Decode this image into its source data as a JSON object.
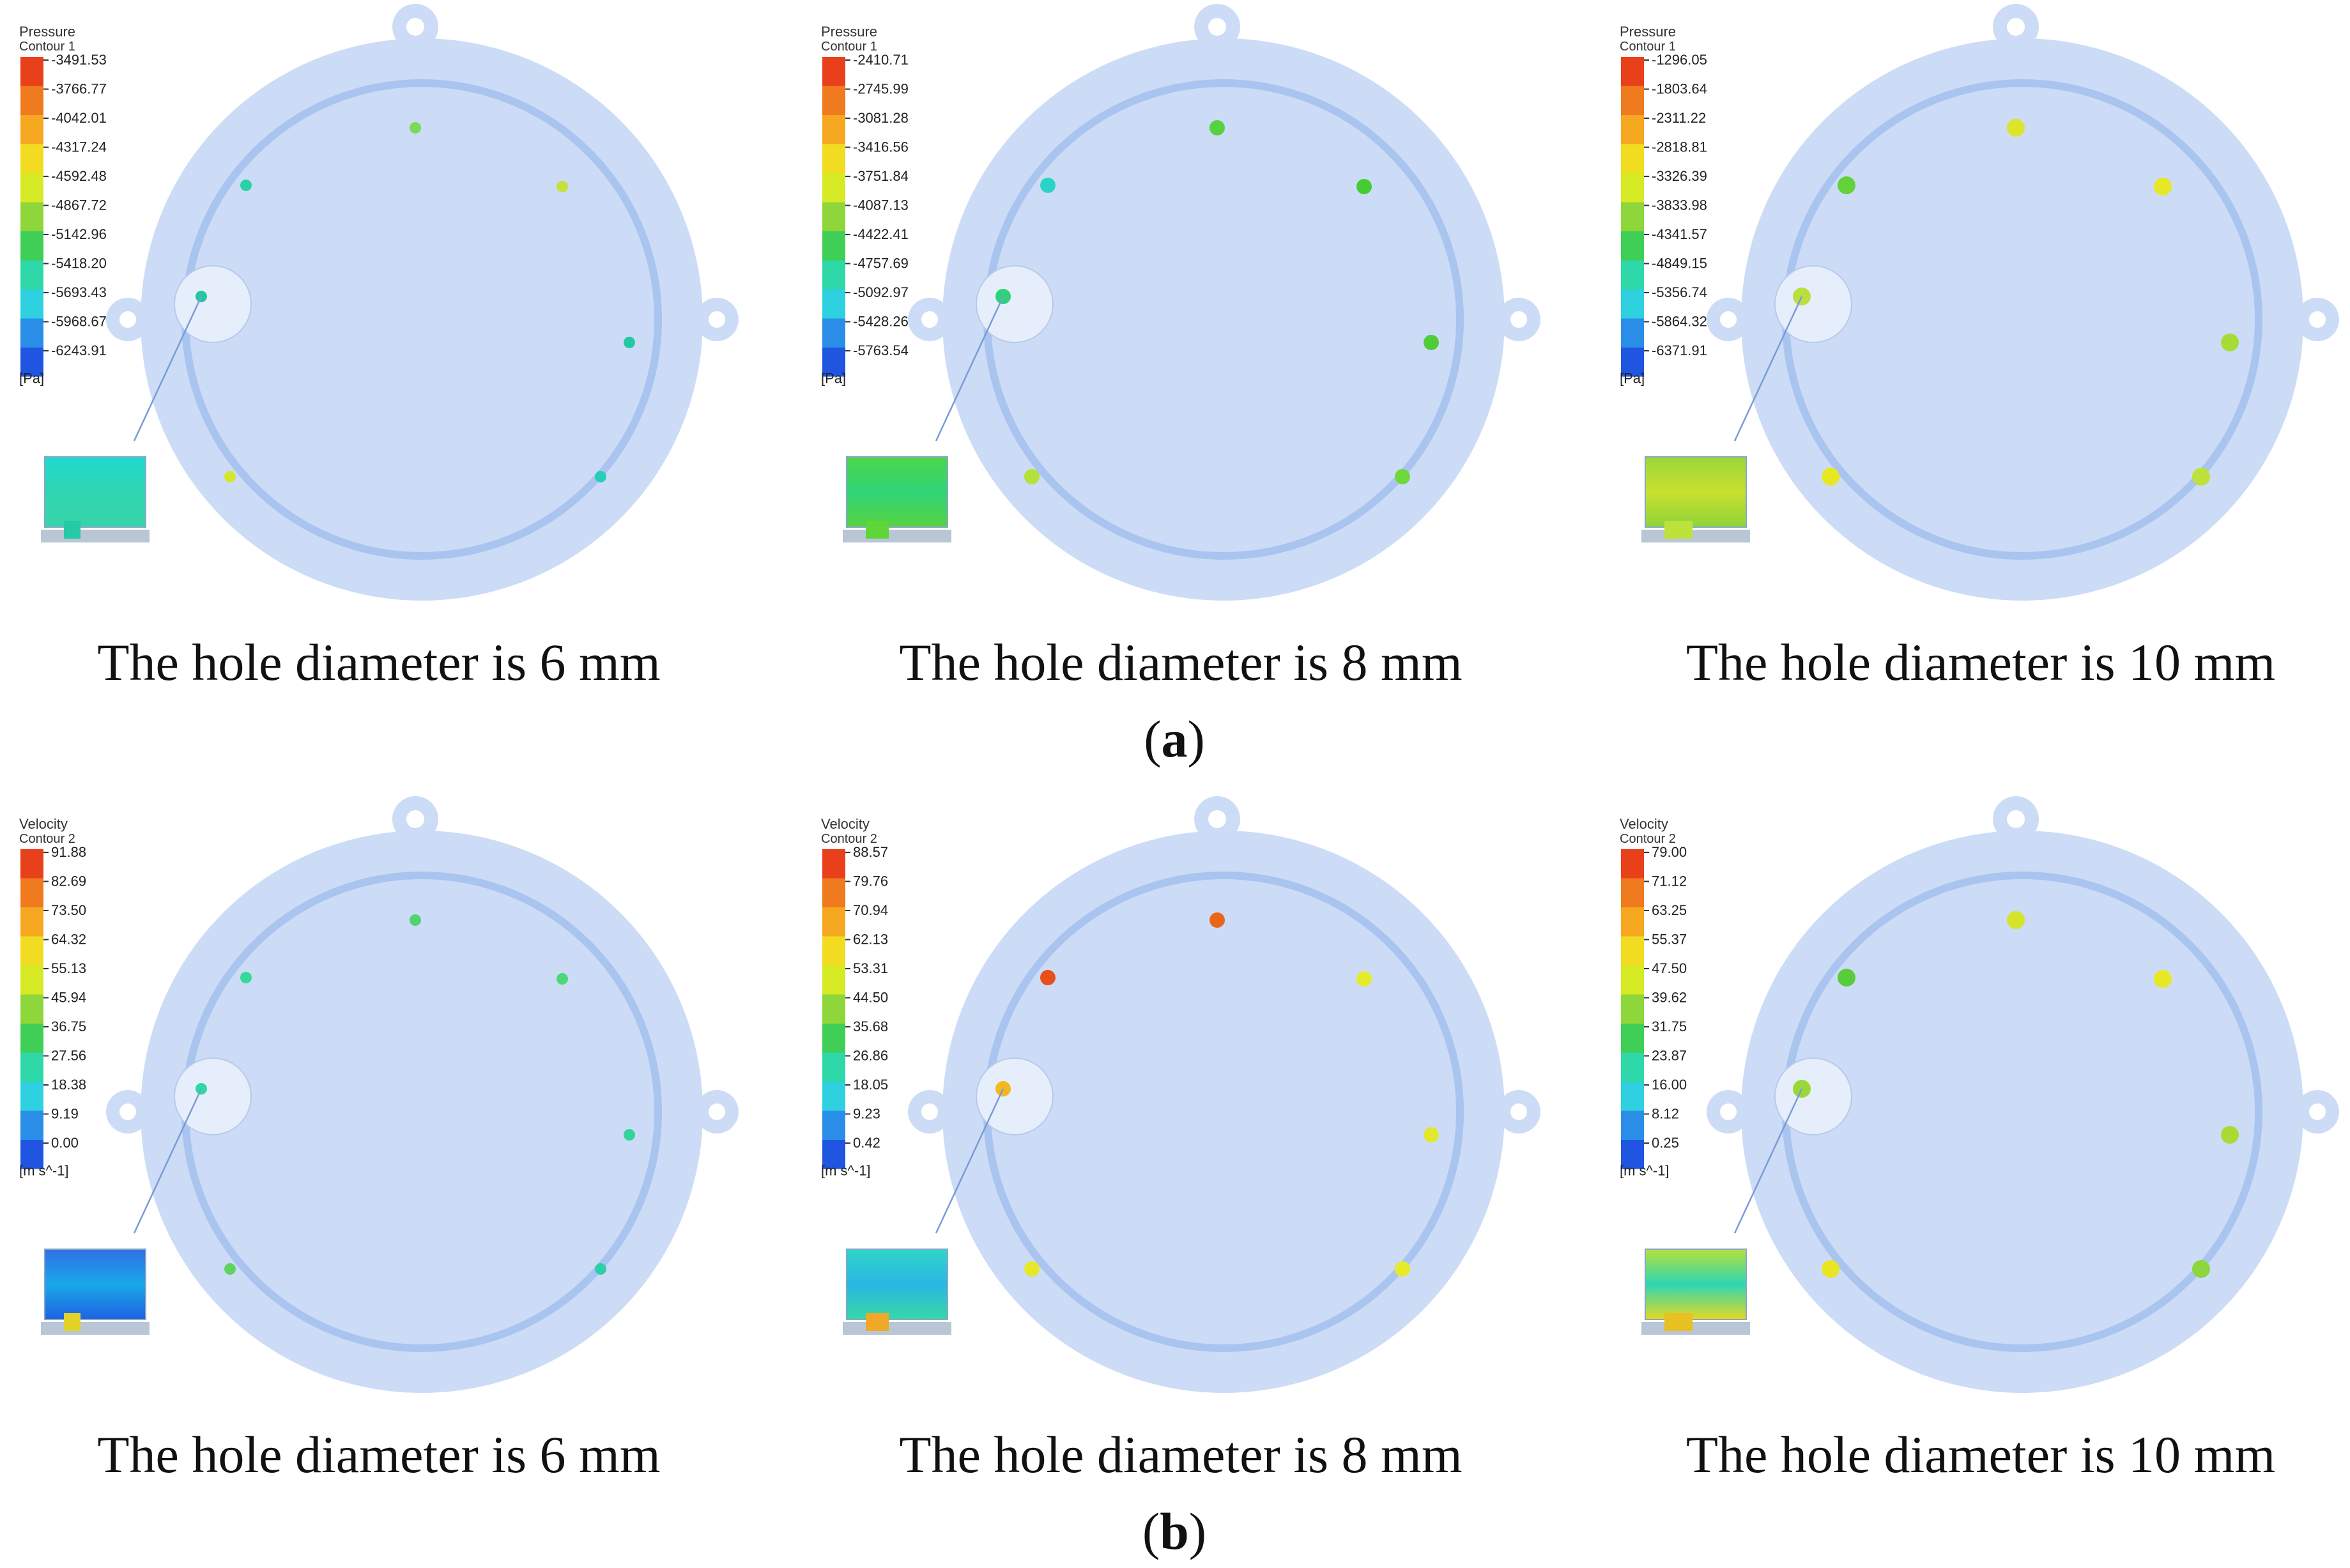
{
  "panels_a": [
    {
      "caption": "The hole diameter is 6 mm",
      "legend": {
        "title1": "Pressure",
        "title2": "Contour 1",
        "values": [
          "-3491.53",
          "-3766.77",
          "-4042.01",
          "-4317.24",
          "-4592.48",
          "-4867.72",
          "-5142.96",
          "-5418.20",
          "-5693.43",
          "-5968.67",
          "-6243.91"
        ],
        "unit": "[Pa]"
      },
      "hole_colors": [
        "#22c7a0",
        "#2ad1a8",
        "#7ed957",
        "#c8e03a",
        "#24c9a4",
        "#d4e62e",
        "#26d0b8"
      ]
    },
    {
      "caption": "The hole diameter is 8 mm",
      "legend": {
        "title1": "Pressure",
        "title2": "Contour 1",
        "values": [
          "-2410.71",
          "-2745.99",
          "-3081.28",
          "-3416.56",
          "-3751.84",
          "-4087.13",
          "-4422.41",
          "-4757.69",
          "-5092.97",
          "-5428.26",
          "-5763.54"
        ],
        "unit": "[Pa]"
      },
      "hole_colors": [
        "#2fd27a",
        "#2bd3c6",
        "#56d240",
        "#44cc33",
        "#4fcc36",
        "#b6e03a",
        "#6fd83c"
      ]
    },
    {
      "caption": "The hole diameter is 10 mm",
      "legend": {
        "title1": "Pressure",
        "title2": "Contour 1",
        "values": [
          "-1296.05",
          "-1803.64",
          "-2311.22",
          "-2818.81",
          "-3326.39",
          "-3833.98",
          "-4341.57",
          "-4849.15",
          "-5356.74",
          "-5864.32",
          "-6371.91"
        ],
        "unit": "[Pa]"
      },
      "hole_colors": [
        "#b9e03c",
        "#61d23a",
        "#dde42a",
        "#e6e826",
        "#a6dc36",
        "#e8e822",
        "#bde23a"
      ]
    }
  ],
  "panels_b": [
    {
      "caption": "The hole diameter is 6 mm",
      "legend": {
        "title1": "Velocity",
        "title2": "Contour 2",
        "values": [
          "91.88",
          "82.69",
          "73.50",
          "64.32",
          "55.13",
          "45.94",
          "36.75",
          "27.56",
          "18.38",
          "9.19",
          "0.00"
        ],
        "unit": "[m s^-1]"
      },
      "hole_colors": [
        "#2fd8a0",
        "#35d99a",
        "#4ed471",
        "#4ed67a",
        "#33d39c",
        "#60d25e",
        "#2ecfa8"
      ]
    },
    {
      "caption": "The hole diameter is 8 mm",
      "legend": {
        "title1": "Velocity",
        "title2": "Contour 2",
        "values": [
          "88.57",
          "79.76",
          "70.94",
          "62.13",
          "53.31",
          "44.50",
          "35.68",
          "26.86",
          "18.05",
          "9.23",
          "0.42"
        ],
        "unit": "[m s^-1]"
      },
      "hole_colors": [
        "#f2b81e",
        "#e8501a",
        "#e8661a",
        "#e4ec2a",
        "#e2e82c",
        "#e8e82a",
        "#e6ea2a"
      ]
    },
    {
      "caption": "The hole diameter is 10 mm",
      "legend": {
        "title1": "Velocity",
        "title2": "Contour 2",
        "values": [
          "79.00",
          "71.12",
          "63.25",
          "55.37",
          "47.50",
          "39.62",
          "31.75",
          "23.87",
          "16.00",
          "8.12",
          "0.25"
        ],
        "unit": "[m s^-1]"
      },
      "hole_colors": [
        "#9ad83a",
        "#58cc3a",
        "#d4e42a",
        "#e8e822",
        "#a8dc34",
        "#e8e622",
        "#8ed63c"
      ]
    }
  ],
  "label_a": "a",
  "label_b": "b",
  "colors": {
    "plate": "#ccdcf6",
    "ring": "#a9c4ee",
    "scale": [
      "#e8401a",
      "#f07a1e",
      "#f5a820",
      "#f2dc22",
      "#d6ea26",
      "#8ed63a",
      "#3fcf56",
      "#2fd8a8",
      "#2fd0e0",
      "#2a8ee8",
      "#1f55e0"
    ]
  }
}
